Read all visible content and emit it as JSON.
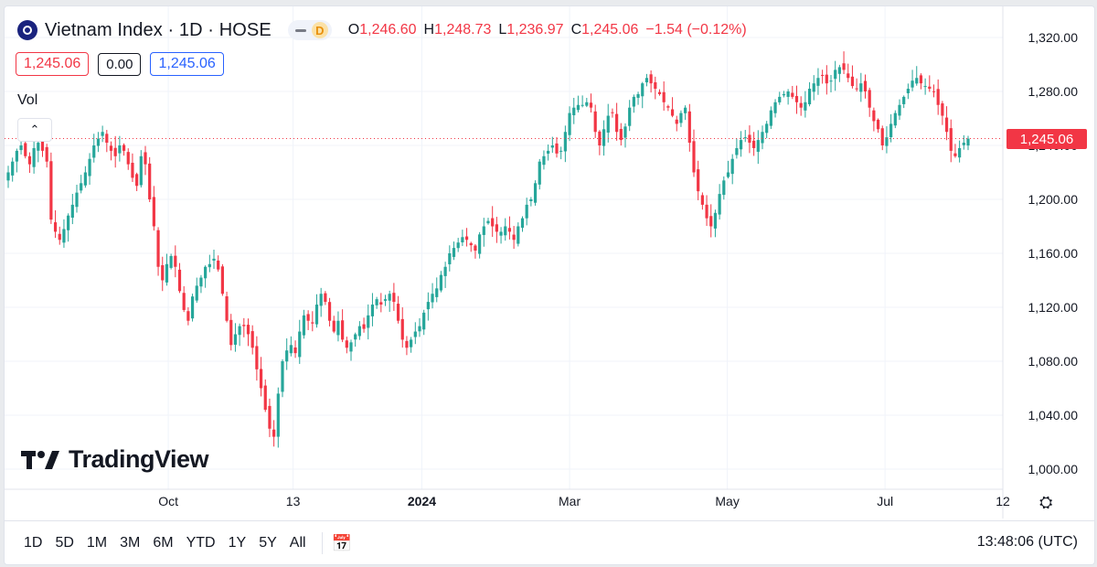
{
  "header": {
    "title": "Vietnam Index · 1D · HOSE",
    "interval_badge": "D",
    "ohlc": [
      {
        "k": "O",
        "v": "1,246.60"
      },
      {
        "k": "H",
        "v": "1,248.73"
      },
      {
        "k": "L",
        "v": "1,236.97"
      },
      {
        "k": "C",
        "v": "1,245.06"
      }
    ],
    "change": "−1.54 (−0.12%)"
  },
  "legend": {
    "sell_price": "1,245.06",
    "spread": "0.00",
    "buy_price": "1,245.06",
    "volume_label": "Vol"
  },
  "watermark": "TradingView",
  "last_price_label": "1,245.06",
  "bottom_bar": {
    "ranges": [
      "1D",
      "5D",
      "1M",
      "3M",
      "6M",
      "YTD",
      "1Y",
      "5Y",
      "All"
    ],
    "time": "13:48:06 (UTC)"
  },
  "colors": {
    "up": "#26a69a",
    "down": "#f23645",
    "grid": "#f0f3fa",
    "text": "#131722"
  },
  "chart_data": {
    "type": "candlestick",
    "y_axis": {
      "min": 1000,
      "max": 1320,
      "ticks": [
        "1,000.00",
        "1,040.00",
        "1,080.00",
        "1,120.00",
        "1,160.00",
        "1,200.00",
        "1,240.00",
        "1,280.00",
        "1,320.00"
      ],
      "tick_values": [
        1000,
        1040,
        1080,
        1120,
        1160,
        1200,
        1240,
        1280,
        1320
      ],
      "position": "right"
    },
    "x_axis": {
      "labels": [
        "Oct",
        "13",
        "2024",
        "Mar",
        "May",
        "Jul",
        "12"
      ],
      "label_positions": [
        0.164,
        0.289,
        0.418,
        0.566,
        0.724,
        0.882,
        1.0
      ]
    },
    "last_price": 1245.06,
    "close_path": [
      1220,
      1228,
      1236,
      1240,
      1232,
      1226,
      1238,
      1242,
      1236,
      1228,
      1185,
      1176,
      1170,
      1178,
      1188,
      1196,
      1205,
      1212,
      1220,
      1230,
      1240,
      1245,
      1250,
      1242,
      1236,
      1232,
      1240,
      1236,
      1226,
      1216,
      1210,
      1232,
      1226,
      1200,
      1180,
      1150,
      1140,
      1152,
      1158,
      1150,
      1132,
      1118,
      1110,
      1128,
      1136,
      1142,
      1150,
      1152,
      1156,
      1148,
      1130,
      1110,
      1092,
      1100,
      1106,
      1106,
      1100,
      1090,
      1074,
      1060,
      1044,
      1030,
      1024,
      1056,
      1080,
      1088,
      1092,
      1086,
      1102,
      1114,
      1110,
      1108,
      1122,
      1130,
      1124,
      1110,
      1102,
      1110,
      1096,
      1090,
      1094,
      1100,
      1106,
      1104,
      1114,
      1122,
      1126,
      1122,
      1126,
      1130,
      1124,
      1110,
      1096,
      1090,
      1096,
      1102,
      1106,
      1116,
      1124,
      1130,
      1134,
      1144,
      1150,
      1160,
      1164,
      1168,
      1172,
      1170,
      1166,
      1162,
      1174,
      1180,
      1184,
      1180,
      1176,
      1176,
      1180,
      1176,
      1170,
      1180,
      1186,
      1196,
      1200,
      1212,
      1228,
      1232,
      1236,
      1240,
      1234,
      1236,
      1250,
      1264,
      1268,
      1270,
      1270,
      1272,
      1268,
      1250,
      1240,
      1252,
      1262,
      1264,
      1250,
      1244,
      1254,
      1268,
      1276,
      1278,
      1286,
      1290,
      1286,
      1282,
      1278,
      1272,
      1268,
      1262,
      1256,
      1264,
      1268,
      1242,
      1220,
      1206,
      1196,
      1186,
      1180,
      1190,
      1204,
      1214,
      1220,
      1230,
      1238,
      1244,
      1246,
      1242,
      1238,
      1244,
      1250,
      1256,
      1266,
      1272,
      1276,
      1278,
      1280,
      1276,
      1272,
      1268,
      1272,
      1282,
      1286,
      1290,
      1292,
      1286,
      1288,
      1296,
      1298,
      1296,
      1290,
      1284,
      1282,
      1286,
      1280,
      1268,
      1258,
      1252,
      1240,
      1246,
      1256,
      1264,
      1270,
      1276,
      1282,
      1288,
      1290,
      1286,
      1284,
      1282,
      1280,
      1270,
      1262,
      1250,
      1236,
      1232,
      1238,
      1242,
      1245
    ]
  }
}
